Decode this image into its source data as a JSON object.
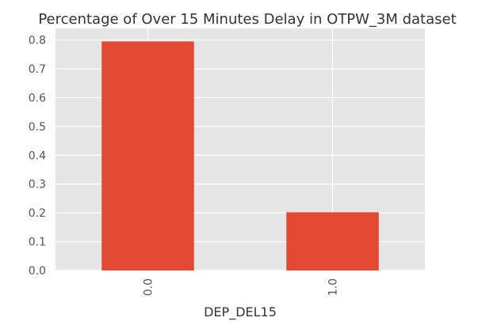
{
  "chart_data": {
    "type": "bar",
    "title": "Percentage of Over 15 Minutes Delay in OTPW_3M dataset",
    "xlabel": "DEP_DEL15",
    "ylabel": "",
    "categories": [
      "0.0",
      "1.0"
    ],
    "values": [
      0.795,
      0.202
    ],
    "ylim": [
      0,
      0.84
    ],
    "yticks": [
      "0.0",
      "0.1",
      "0.2",
      "0.3",
      "0.4",
      "0.5",
      "0.6",
      "0.7",
      "0.8"
    ],
    "grid": true,
    "legend": "none",
    "colors": {
      "bar": "#E24A33",
      "plot_background": "#E5E5E5",
      "grid": "#FFFFFF",
      "text": "#333333",
      "tick_text": "#555555"
    }
  }
}
